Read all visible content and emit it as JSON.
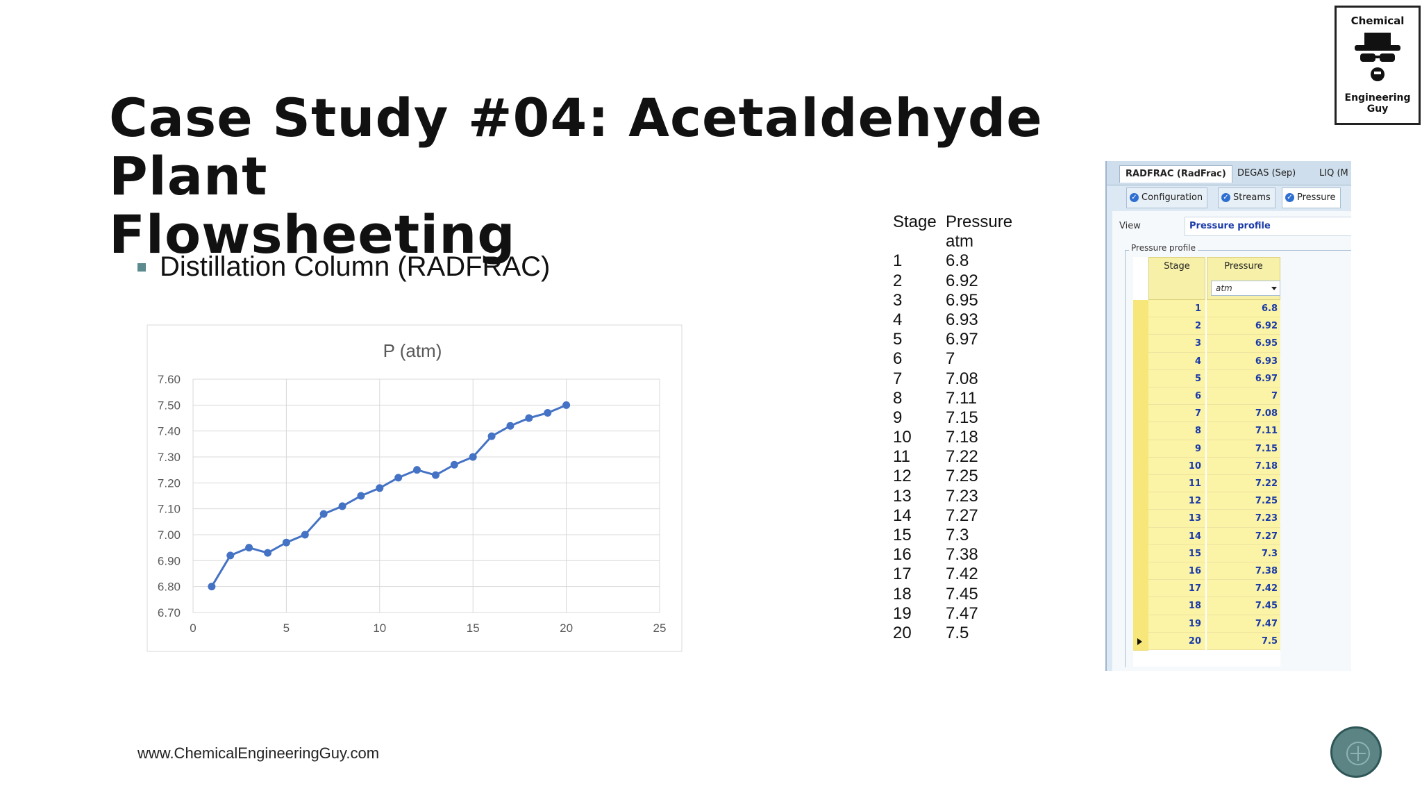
{
  "slide": {
    "title_line1": "Case Study #04: Acetaldehyde Plant",
    "title_line2": "Flowsheeting",
    "bullet": "Distillation Column (RADFRAC)",
    "footer_url": "www.ChemicalEngineeringGuy.com"
  },
  "logo": {
    "top_text": "Chemical",
    "bottom_text": "Engineering Guy"
  },
  "chart_data": {
    "type": "line",
    "title": "P (atm)",
    "x": [
      1,
      2,
      3,
      4,
      5,
      6,
      7,
      8,
      9,
      10,
      11,
      12,
      13,
      14,
      15,
      16,
      17,
      18,
      19,
      20
    ],
    "values": [
      6.8,
      6.92,
      6.95,
      6.93,
      6.97,
      7,
      7.08,
      7.11,
      7.15,
      7.18,
      7.22,
      7.25,
      7.23,
      7.27,
      7.3,
      7.38,
      7.42,
      7.45,
      7.47,
      7.5
    ],
    "xlim": [
      0,
      25
    ],
    "ylim": [
      6.7,
      7.6
    ],
    "x_ticks": [
      "0",
      "5",
      "10",
      "15",
      "20",
      "25"
    ],
    "y_ticks": [
      "6.70",
      "6.80",
      "6.90",
      "7.00",
      "7.10",
      "7.20",
      "7.30",
      "7.40",
      "7.50",
      "7.60"
    ],
    "grid": true,
    "series_color": "#4472c4"
  },
  "text_table": {
    "header_stage": "Stage",
    "header_pressure": "Pressure",
    "unit": "atm",
    "rows": [
      {
        "stage": "1",
        "p": "6.8"
      },
      {
        "stage": "2",
        "p": "6.92"
      },
      {
        "stage": "3",
        "p": "6.95"
      },
      {
        "stage": "4",
        "p": "6.93"
      },
      {
        "stage": "5",
        "p": "6.97"
      },
      {
        "stage": "6",
        "p": "7"
      },
      {
        "stage": "7",
        "p": "7.08"
      },
      {
        "stage": "8",
        "p": "7.11"
      },
      {
        "stage": "9",
        "p": "7.15"
      },
      {
        "stage": "10",
        "p": "7.18"
      },
      {
        "stage": "11",
        "p": "7.22"
      },
      {
        "stage": "12",
        "p": "7.25"
      },
      {
        "stage": "13",
        "p": "7.23"
      },
      {
        "stage": "14",
        "p": "7.27"
      },
      {
        "stage": "15",
        "p": "7.3"
      },
      {
        "stage": "16",
        "p": "7.38"
      },
      {
        "stage": "17",
        "p": "7.42"
      },
      {
        "stage": "18",
        "p": "7.45"
      },
      {
        "stage": "19",
        "p": "7.47"
      },
      {
        "stage": "20",
        "p": "7.5"
      }
    ]
  },
  "aspen": {
    "tabs": [
      "RADFRAC (RadFrac)",
      "DEGAS (Sep)",
      "LIQ (M"
    ],
    "subtabs": [
      "Configuration",
      "Streams",
      "Pressure"
    ],
    "view_label": "View",
    "view_value": "Pressure profile",
    "group_label": "Pressure profile",
    "col_stage": "Stage",
    "col_pressure": "Pressure",
    "unit": "atm"
  }
}
